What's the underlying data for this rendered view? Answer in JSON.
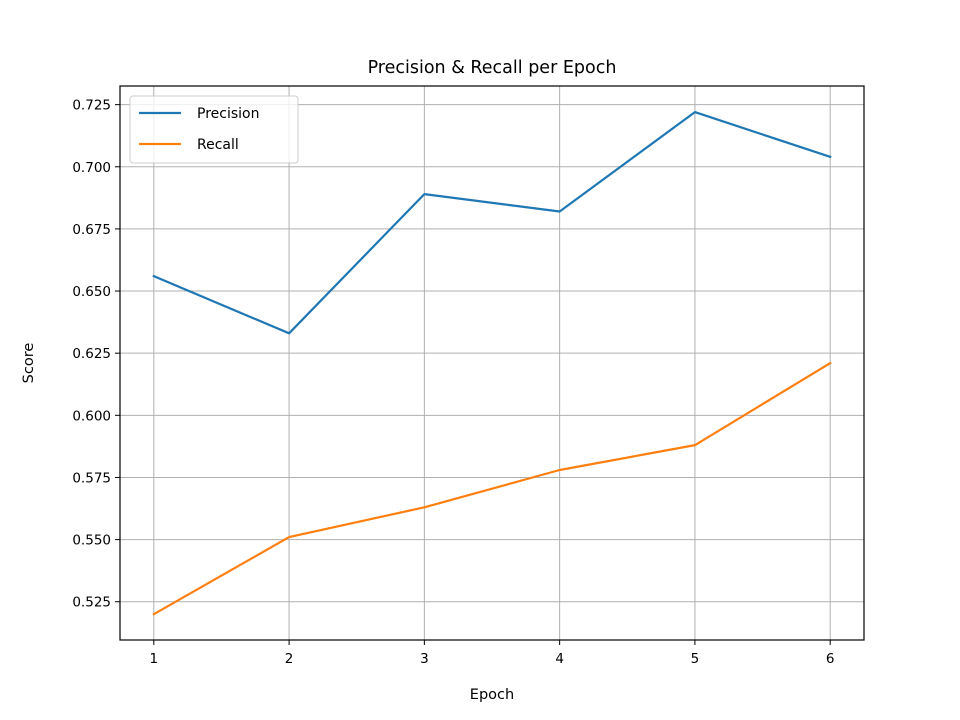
{
  "chart_data": {
    "type": "line",
    "title": "Precision & Recall per Epoch",
    "xlabel": "Epoch",
    "ylabel": "Score",
    "x": [
      1,
      2,
      3,
      4,
      5,
      6
    ],
    "xticks": [
      "1",
      "2",
      "3",
      "4",
      "5",
      "6"
    ],
    "yticks": [
      "0.525",
      "0.550",
      "0.575",
      "0.600",
      "0.625",
      "0.650",
      "0.675",
      "0.700",
      "0.725"
    ],
    "xlim": [
      0.75,
      6.25
    ],
    "ylim": [
      0.5096,
      0.7325
    ],
    "grid": true,
    "legend": "top-left",
    "series": [
      {
        "name": "Precision",
        "color": "#1f77b4",
        "values": [
          0.656,
          0.633,
          0.689,
          0.682,
          0.722,
          0.704
        ]
      },
      {
        "name": "Recall",
        "color": "#ff7f0e",
        "values": [
          0.52,
          0.551,
          0.563,
          0.578,
          0.588,
          0.621
        ]
      }
    ]
  }
}
